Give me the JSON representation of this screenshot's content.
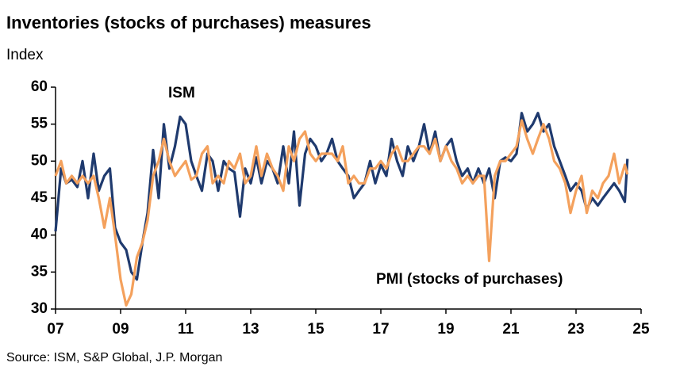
{
  "chart_data": {
    "type": "line",
    "title": "Inventories (stocks of purchases) measures",
    "y_label": "Index",
    "source": "Source: ISM, S&P Global, J.P. Morgan",
    "x": [
      2007,
      2007.17,
      2007.33,
      2007.5,
      2007.67,
      2007.83,
      2008,
      2008.17,
      2008.33,
      2008.5,
      2008.67,
      2008.83,
      2009,
      2009.17,
      2009.33,
      2009.5,
      2009.67,
      2009.83,
      2010,
      2010.17,
      2010.33,
      2010.5,
      2010.67,
      2010.83,
      2011,
      2011.17,
      2011.33,
      2011.5,
      2011.67,
      2011.83,
      2012,
      2012.17,
      2012.33,
      2012.5,
      2012.67,
      2012.83,
      2013,
      2013.17,
      2013.33,
      2013.5,
      2013.67,
      2013.83,
      2014,
      2014.17,
      2014.33,
      2014.5,
      2014.67,
      2014.83,
      2015,
      2015.17,
      2015.33,
      2015.5,
      2015.67,
      2015.83,
      2016,
      2016.17,
      2016.33,
      2016.5,
      2016.67,
      2016.83,
      2017,
      2017.17,
      2017.33,
      2017.5,
      2017.67,
      2017.83,
      2018,
      2018.17,
      2018.33,
      2018.5,
      2018.67,
      2018.83,
      2019,
      2019.17,
      2019.33,
      2019.5,
      2019.67,
      2019.83,
      2020,
      2020.17,
      2020.33,
      2020.5,
      2020.67,
      2020.83,
      2021,
      2021.17,
      2021.33,
      2021.5,
      2021.67,
      2021.83,
      2022,
      2022.17,
      2022.33,
      2022.5,
      2022.67,
      2022.83,
      2023,
      2023.17,
      2023.33,
      2023.5,
      2023.67,
      2023.83,
      2024,
      2024.17,
      2024.33,
      2024.5,
      2024.58
    ],
    "series": [
      {
        "name": "ISM",
        "color": "#1f3a6e",
        "values": [
          40.5,
          49,
          47,
          47.5,
          46.5,
          50,
          45,
          51,
          46,
          48,
          49,
          41,
          39,
          38,
          35,
          34,
          39,
          43,
          51.5,
          45,
          55,
          49,
          52,
          56,
          55,
          50,
          48,
          46,
          51,
          50,
          46,
          50,
          49,
          48.5,
          42.5,
          49,
          47,
          50.5,
          47,
          50,
          49,
          47,
          52,
          47,
          54,
          44,
          51,
          53,
          52,
          50,
          51,
          53,
          50,
          49,
          48,
          45,
          46,
          47,
          50,
          47,
          49.5,
          48,
          53,
          50,
          48,
          52,
          50,
          52,
          55,
          51,
          54,
          50,
          52,
          53,
          50,
          48,
          49,
          47,
          49,
          47,
          49,
          45,
          50,
          50.5,
          50,
          51,
          56.5,
          54,
          55,
          56.5,
          54,
          55,
          52,
          50,
          48,
          46,
          47,
          46,
          43.5,
          45,
          44,
          45,
          46,
          47,
          46,
          44.5,
          50.3
        ]
      },
      {
        "name": "PMI (stocks of purchases)",
        "color": "#f4a15d",
        "values": [
          48,
          50,
          47,
          48,
          47,
          48,
          47,
          48,
          45,
          41,
          45,
          40,
          34,
          30.5,
          32,
          37,
          39,
          42,
          48,
          50,
          53,
          50,
          48,
          49,
          50,
          47.5,
          48,
          51,
          52,
          47,
          48,
          47,
          50,
          49,
          51,
          47,
          48,
          52,
          48,
          51,
          49,
          48,
          46,
          52,
          50,
          53,
          54,
          51,
          50,
          51,
          51,
          51,
          50,
          52,
          47,
          48,
          47,
          47,
          49,
          49,
          50,
          49,
          51,
          52,
          50,
          50,
          51,
          52,
          52,
          51,
          53,
          50,
          52,
          50,
          49,
          47,
          48,
          47,
          48,
          48,
          36.5,
          48,
          50,
          50,
          51,
          52,
          55.5,
          53,
          51,
          53,
          55,
          53,
          50,
          49,
          47,
          43,
          46,
          48,
          43,
          46,
          45,
          47,
          48,
          51,
          47,
          49.5,
          48.2
        ]
      }
    ],
    "xlim": [
      2007,
      2025
    ],
    "xticks": [
      {
        "value": 2007,
        "label": "07"
      },
      {
        "value": 2009,
        "label": "09"
      },
      {
        "value": 2011,
        "label": "11"
      },
      {
        "value": 2013,
        "label": "13"
      },
      {
        "value": 2015,
        "label": "15"
      },
      {
        "value": 2017,
        "label": "17"
      },
      {
        "value": 2019,
        "label": "19"
      },
      {
        "value": 2021,
        "label": "21"
      },
      {
        "value": 2023,
        "label": "23"
      },
      {
        "value": 2025,
        "label": "25"
      }
    ],
    "ylim": [
      30,
      60
    ],
    "yticks": [
      30,
      35,
      40,
      45,
      50,
      55,
      60
    ],
    "grid": false
  }
}
